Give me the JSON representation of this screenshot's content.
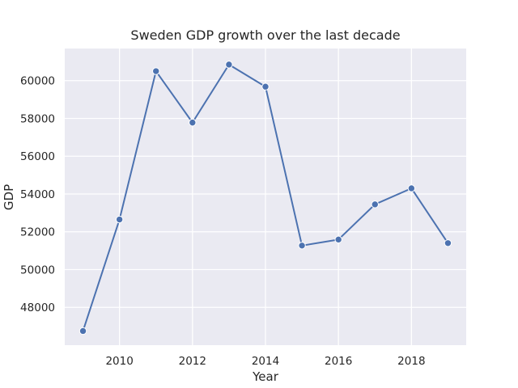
{
  "chart_data": {
    "type": "line",
    "title": "Sweden GDP growth over the last decade",
    "xlabel": "Year",
    "ylabel": "GDP",
    "xlim": [
      2008.5,
      2019.5
    ],
    "ylim": [
      46000,
      61700
    ],
    "x_ticks": [
      2010,
      2012,
      2014,
      2016,
      2018
    ],
    "y_ticks": [
      48000,
      50000,
      52000,
      54000,
      56000,
      58000,
      60000
    ],
    "grid": true,
    "series": [
      {
        "name": "GDP",
        "color": "#4c72b0",
        "marker": "circle",
        "x": [
          2009,
          2010,
          2011,
          2012,
          2013,
          2014,
          2015,
          2016,
          2017,
          2018,
          2019
        ],
        "y": [
          46750,
          52650,
          60500,
          57780,
          60850,
          59680,
          51270,
          51590,
          53450,
          54300,
          51400
        ]
      }
    ],
    "colors": {
      "plot_background": "#eaeaf2",
      "grid": "#ffffff",
      "text": "#262626"
    }
  }
}
